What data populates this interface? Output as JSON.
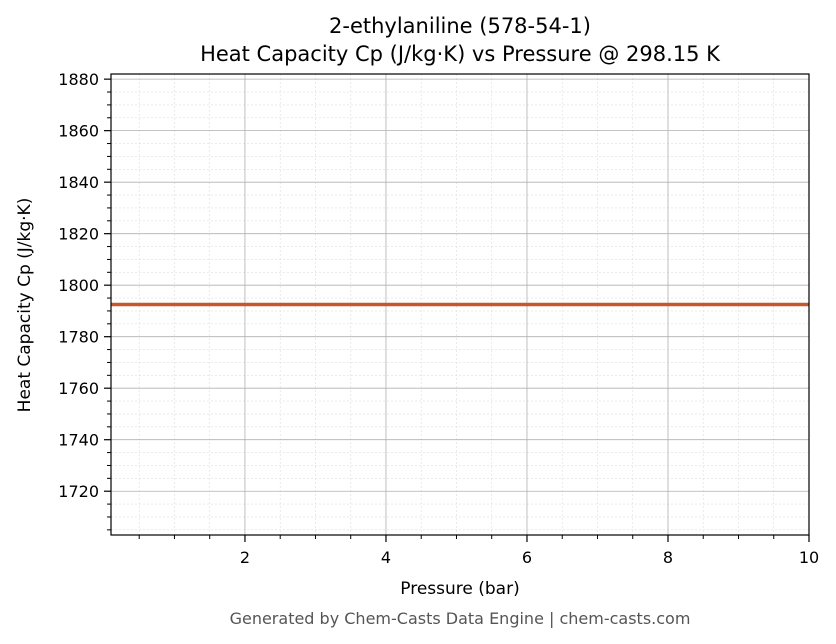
{
  "chart_data": {
    "type": "line",
    "title_line1": "2-ethylaniline (578-54-1)",
    "title_line2": "Heat Capacity Cp (J/kg·K) vs Pressure @ 298.15 K",
    "xlabel": "Pressure (bar)",
    "ylabel": "Heat Capacity Cp (J/kg·K)",
    "xlim": [
      0.1,
      10
    ],
    "ylim": [
      1703,
      1882
    ],
    "xticks": [
      2,
      4,
      6,
      8,
      10
    ],
    "yticks": [
      1720,
      1740,
      1760,
      1780,
      1800,
      1820,
      1840,
      1860,
      1880
    ],
    "grid": true,
    "minor_grid": true,
    "series": [
      {
        "color": "#c8562a",
        "x": [
          0.1,
          10
        ],
        "y": [
          1792.5,
          1792.5
        ]
      }
    ]
  },
  "footer": "Generated by Chem-Casts Data Engine | chem-casts.com"
}
